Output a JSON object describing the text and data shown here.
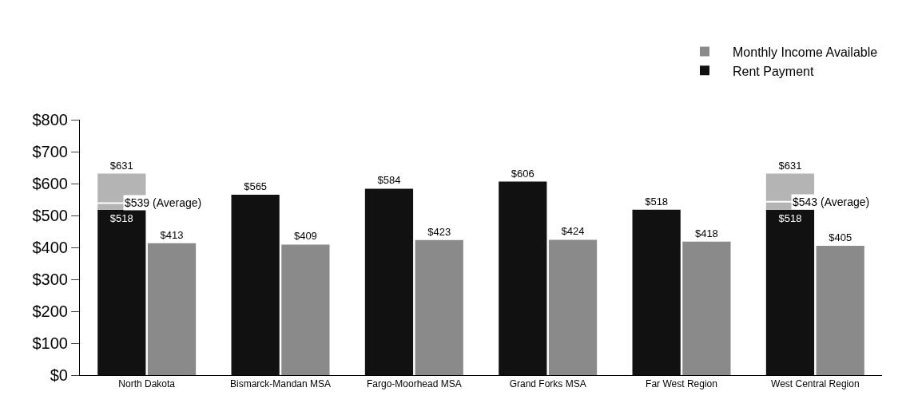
{
  "chart_data": {
    "type": "bar",
    "categories": [
      "North Dakota",
      "Bismarck-Mandan MSA",
      "Fargo-Moorhead MSA",
      "Grand Forks MSA",
      "Far West Region",
      "West Central Region"
    ],
    "series": [
      {
        "name": "Rent Payment",
        "color": "#111111",
        "values": [
          518,
          565,
          584,
          606,
          518,
          518
        ],
        "value_labels": [
          "$518",
          "$565",
          "$584",
          "$606",
          "$518",
          "$518"
        ]
      },
      {
        "color": "#b4b4b4",
        "base": [
          518,
          null,
          null,
          null,
          null,
          518
        ],
        "values": [
          113,
          null,
          null,
          null,
          null,
          113
        ],
        "value_labels": [
          "$631",
          null,
          null,
          null,
          null,
          "$631"
        ]
      },
      {
        "name": "Monthly Income Available",
        "color": "#8a8a8a",
        "values": [
          413,
          409,
          423,
          424,
          418,
          405
        ],
        "value_labels": [
          "$413",
          "$409",
          "$423",
          "$424",
          "$418",
          "$405"
        ]
      }
    ],
    "annotations": [
      {
        "text": "$539 (Average)",
        "x": "North Dakota",
        "y": 539
      },
      {
        "text": "$543 (Average)",
        "x": "West Central Region",
        "y": 543
      }
    ],
    "ylim": [
      0,
      800
    ],
    "yticks": [
      {
        "value": 0,
        "label": "$0"
      },
      {
        "value": 100,
        "label": "$100"
      },
      {
        "value": 200,
        "label": "$200"
      },
      {
        "value": 300,
        "label": "$300"
      },
      {
        "value": 400,
        "label": "$400"
      },
      {
        "value": 500,
        "label": "$500"
      },
      {
        "value": 600,
        "label": "$600"
      },
      {
        "value": 700,
        "label": "$700"
      },
      {
        "value": 800,
        "label": "$800"
      }
    ],
    "legend": "top right"
  }
}
